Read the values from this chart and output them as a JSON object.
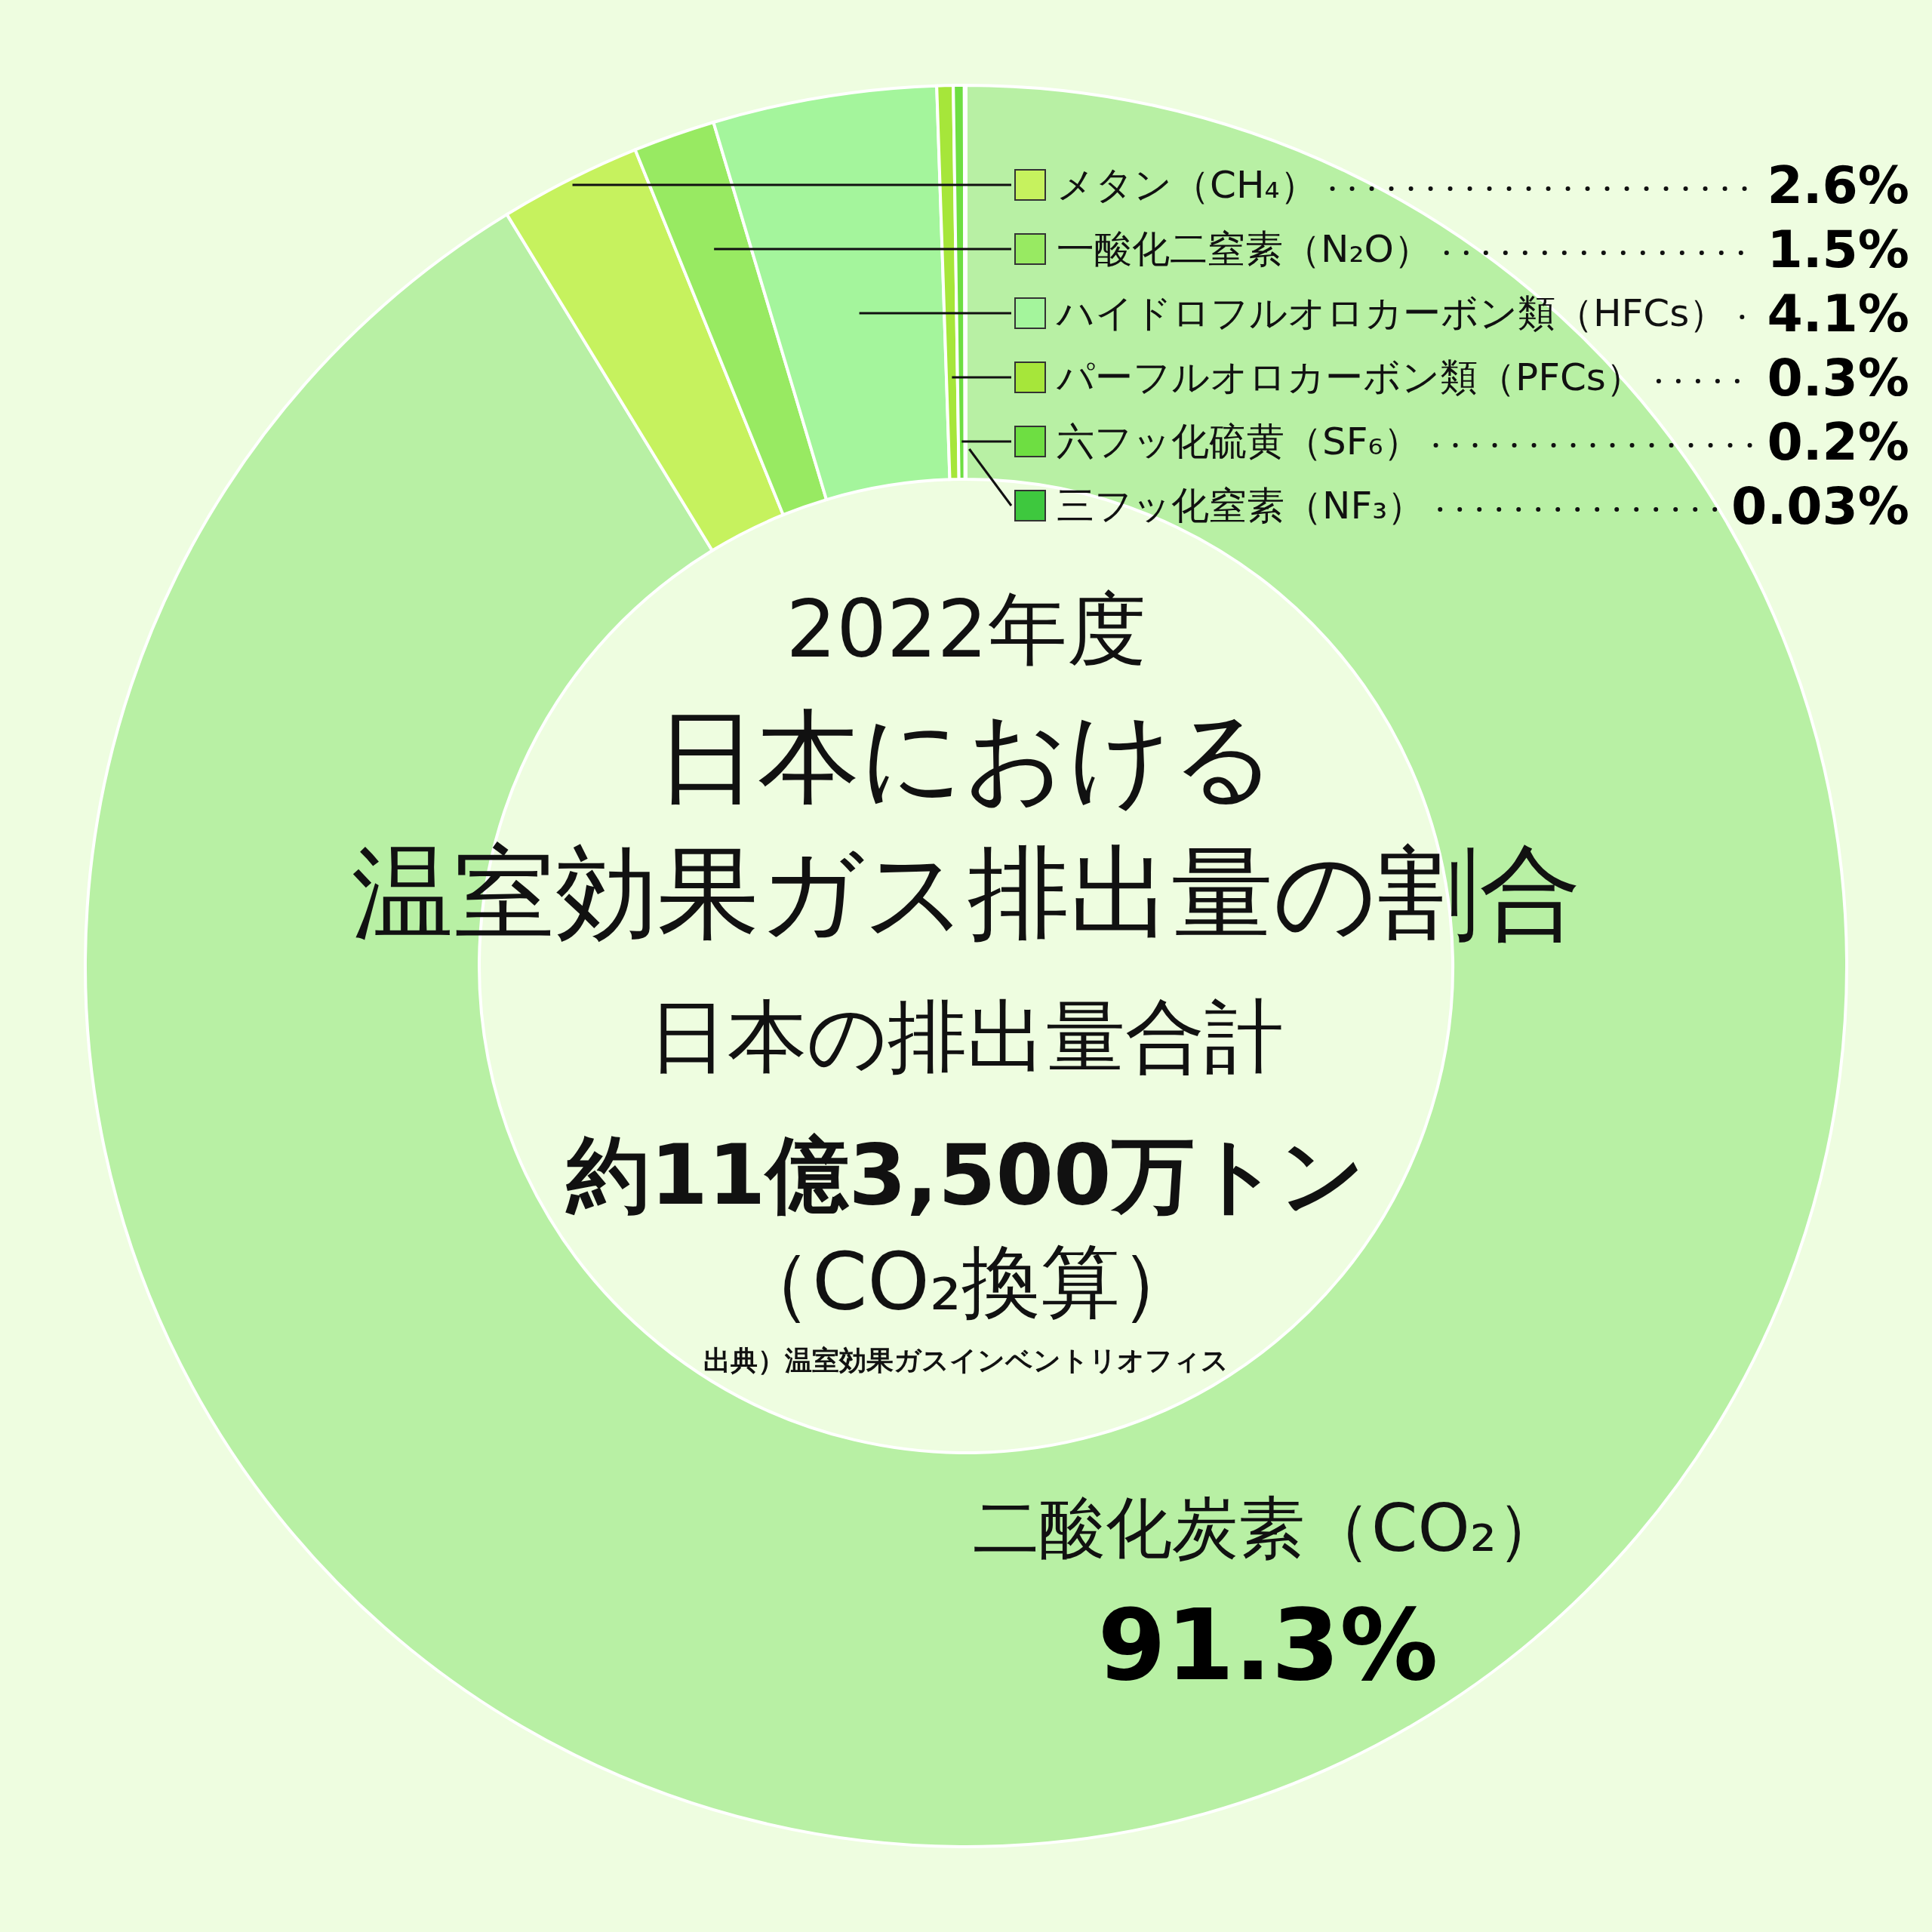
{
  "chart_data": {
    "type": "donut",
    "subtitle": "2022年度",
    "title": "日本における温室効果ガス排出量の割合",
    "categories": [
      "二酸化炭素（CO₂）",
      "メタン（CH₄）",
      "一酸化二窒素（N₂O）",
      "ハイドロフルオロカーボン類（HFCs）",
      "パーフルオロカーボン類（PFCs）",
      "六フッ化硫黄（SF₆）",
      "三フッ化窒素（NF₃）"
    ],
    "values": [
      91.3,
      2.6,
      1.5,
      4.1,
      0.3,
      0.2,
      0.03
    ],
    "legend": "top right",
    "value_labels": [
      "91.3%",
      "2.6%",
      "1.5%",
      "4.1%",
      "0.3%",
      "0.2%",
      "0.03%"
    ],
    "colors": [
      "#b8f0a4",
      "#c6f25e",
      "#98ea62",
      "#a4f59c",
      "#a6e63a",
      "#6ede42",
      "#3ec83e"
    ],
    "annotations": [
      "日本の排出量合計",
      "約11億3,500万トン",
      "（CO₂換算）",
      "出典）温室効果ガスインベントリオフィス"
    ]
  }
}
